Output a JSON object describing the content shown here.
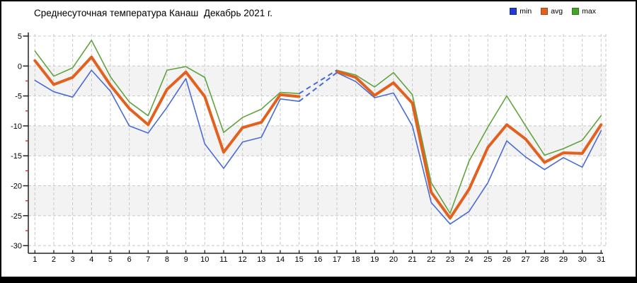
{
  "title": "Среднесуточная температура Канаш  Декабрь 2021 г.",
  "legend": {
    "items": [
      {
        "label": "min",
        "color": "#2538cf"
      },
      {
        "label": "avg",
        "color": "#e2611f"
      },
      {
        "label": "max",
        "color": "#44a32a"
      }
    ]
  },
  "chart_data": {
    "type": "line",
    "title": "Среднесуточная температура Канаш  Декабрь 2021 г.",
    "xlabel": "",
    "ylabel": "",
    "x": [
      1,
      2,
      3,
      4,
      5,
      6,
      7,
      8,
      9,
      10,
      11,
      12,
      13,
      14,
      15,
      16,
      17,
      18,
      19,
      20,
      21,
      22,
      23,
      24,
      25,
      26,
      27,
      28,
      29,
      30,
      31
    ],
    "ylim": [
      -30,
      5
    ],
    "yticks": [
      5,
      0,
      -5,
      -10,
      -15,
      -20,
      -25,
      -30
    ],
    "y_minor_ticks": [
      -2.5,
      -7.5,
      -12.5,
      -17.5,
      -22.5,
      -27.5
    ],
    "missing_days": [
      16
    ],
    "gap_segment": {
      "from_day": 15,
      "to_day": 17,
      "style": "dashed",
      "color": "#4a6bd5"
    },
    "band_ranges": [
      [
        0,
        -5
      ],
      [
        -10,
        -15
      ],
      [
        -20,
        -25
      ]
    ],
    "series": [
      {
        "name": "min",
        "color": "#4a6bd5",
        "width": 1.6,
        "values": [
          -2.4,
          -4.3,
          -5.2,
          -0.7,
          -4.2,
          -10,
          -11.2,
          -6.9,
          -2.1,
          -13,
          -17.1,
          -12.7,
          -11.9,
          -5.5,
          -5.9,
          null,
          -1.1,
          -2.6,
          -5.3,
          -4.5,
          -10,
          -22.8,
          -26.4,
          -24.3,
          -19.5,
          -12.5,
          -15.2,
          -17.3,
          -15.3,
          -16.9,
          -10.8
        ]
      },
      {
        "name": "avg",
        "color": "#e2611f",
        "width": 4,
        "values": [
          0.9,
          -3.1,
          -1.9,
          1.5,
          -3.2,
          -7.1,
          -9.8,
          -3.9,
          -1,
          -5.1,
          -14.4,
          -10.3,
          -9.4,
          -4.8,
          -5.1,
          null,
          -0.9,
          -1.9,
          -4.9,
          -2.8,
          -6.2,
          -21.1,
          -25.4,
          -20.6,
          -13.6,
          -9.8,
          -12.2,
          -16.1,
          -14.5,
          -14.6,
          -9.8
        ]
      },
      {
        "name": "max",
        "color": "#62a33e",
        "width": 1.6,
        "values": [
          2.5,
          -1.7,
          -0.3,
          4.3,
          -1.8,
          -6,
          -8.3,
          -0.7,
          -0.1,
          -1.9,
          -11.1,
          -8.6,
          -7.2,
          -4.4,
          -4.6,
          null,
          -0.7,
          -1.5,
          -3.5,
          -1.1,
          -4.8,
          -19.5,
          -24.6,
          -15.9,
          -10.2,
          -5,
          -10,
          -14.9,
          -13.8,
          -12.4,
          -8.3
        ]
      }
    ],
    "legend_position": "top-right",
    "grid": true
  },
  "colors": {
    "background": "#ffffff",
    "band": "#f3f3f3",
    "grid": "#c8c8c8",
    "axis": "#222222",
    "minor_tick": "#c03030",
    "text": "#000000",
    "border": "#000000"
  }
}
